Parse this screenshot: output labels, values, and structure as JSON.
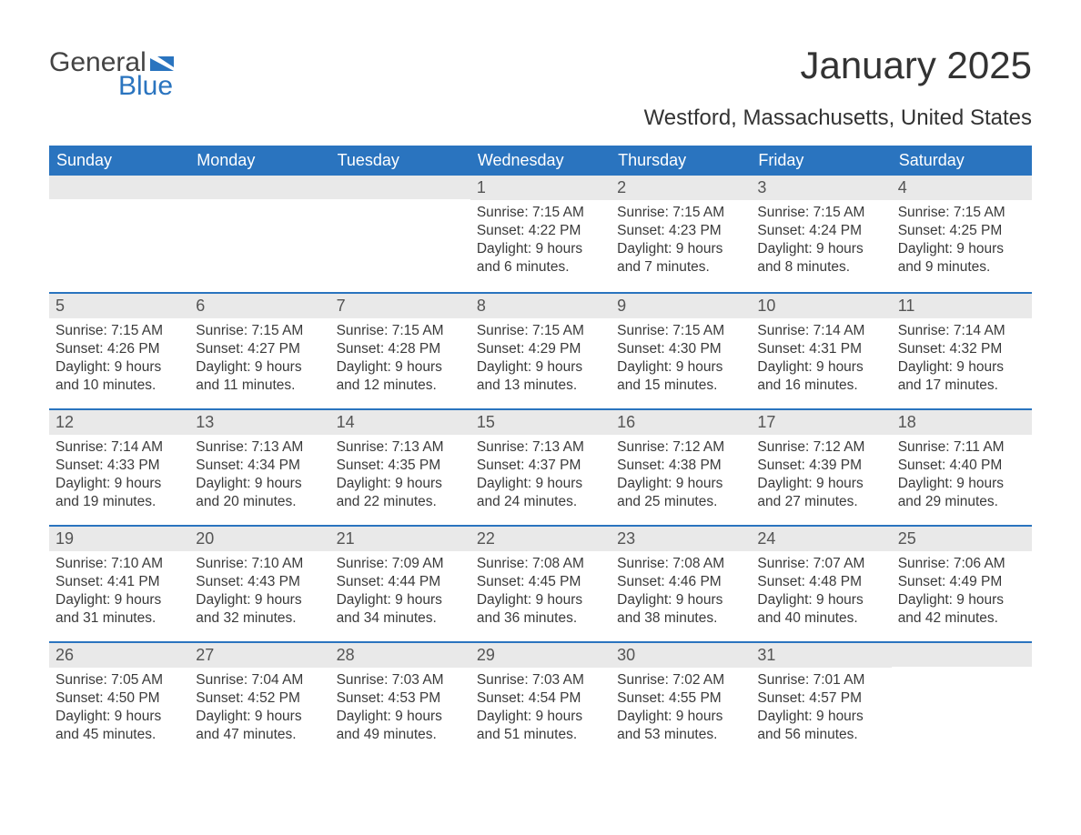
{
  "logo": {
    "top": "General",
    "bottom": "Blue"
  },
  "title": "January 2025",
  "subtitle": "Westford, Massachusetts, United States",
  "brand_color": "#2a74bf",
  "daynum_bg": "#e9e9e9",
  "weekdays": [
    "Sunday",
    "Monday",
    "Tuesday",
    "Wednesday",
    "Thursday",
    "Friday",
    "Saturday"
  ],
  "weeks": [
    [
      null,
      null,
      null,
      {
        "n": "1",
        "sr": "Sunrise: 7:15 AM",
        "ss": "Sunset: 4:22 PM",
        "d1": "Daylight: 9 hours",
        "d2": "and 6 minutes."
      },
      {
        "n": "2",
        "sr": "Sunrise: 7:15 AM",
        "ss": "Sunset: 4:23 PM",
        "d1": "Daylight: 9 hours",
        "d2": "and 7 minutes."
      },
      {
        "n": "3",
        "sr": "Sunrise: 7:15 AM",
        "ss": "Sunset: 4:24 PM",
        "d1": "Daylight: 9 hours",
        "d2": "and 8 minutes."
      },
      {
        "n": "4",
        "sr": "Sunrise: 7:15 AM",
        "ss": "Sunset: 4:25 PM",
        "d1": "Daylight: 9 hours",
        "d2": "and 9 minutes."
      }
    ],
    [
      {
        "n": "5",
        "sr": "Sunrise: 7:15 AM",
        "ss": "Sunset: 4:26 PM",
        "d1": "Daylight: 9 hours",
        "d2": "and 10 minutes."
      },
      {
        "n": "6",
        "sr": "Sunrise: 7:15 AM",
        "ss": "Sunset: 4:27 PM",
        "d1": "Daylight: 9 hours",
        "d2": "and 11 minutes."
      },
      {
        "n": "7",
        "sr": "Sunrise: 7:15 AM",
        "ss": "Sunset: 4:28 PM",
        "d1": "Daylight: 9 hours",
        "d2": "and 12 minutes."
      },
      {
        "n": "8",
        "sr": "Sunrise: 7:15 AM",
        "ss": "Sunset: 4:29 PM",
        "d1": "Daylight: 9 hours",
        "d2": "and 13 minutes."
      },
      {
        "n": "9",
        "sr": "Sunrise: 7:15 AM",
        "ss": "Sunset: 4:30 PM",
        "d1": "Daylight: 9 hours",
        "d2": "and 15 minutes."
      },
      {
        "n": "10",
        "sr": "Sunrise: 7:14 AM",
        "ss": "Sunset: 4:31 PM",
        "d1": "Daylight: 9 hours",
        "d2": "and 16 minutes."
      },
      {
        "n": "11",
        "sr": "Sunrise: 7:14 AM",
        "ss": "Sunset: 4:32 PM",
        "d1": "Daylight: 9 hours",
        "d2": "and 17 minutes."
      }
    ],
    [
      {
        "n": "12",
        "sr": "Sunrise: 7:14 AM",
        "ss": "Sunset: 4:33 PM",
        "d1": "Daylight: 9 hours",
        "d2": "and 19 minutes."
      },
      {
        "n": "13",
        "sr": "Sunrise: 7:13 AM",
        "ss": "Sunset: 4:34 PM",
        "d1": "Daylight: 9 hours",
        "d2": "and 20 minutes."
      },
      {
        "n": "14",
        "sr": "Sunrise: 7:13 AM",
        "ss": "Sunset: 4:35 PM",
        "d1": "Daylight: 9 hours",
        "d2": "and 22 minutes."
      },
      {
        "n": "15",
        "sr": "Sunrise: 7:13 AM",
        "ss": "Sunset: 4:37 PM",
        "d1": "Daylight: 9 hours",
        "d2": "and 24 minutes."
      },
      {
        "n": "16",
        "sr": "Sunrise: 7:12 AM",
        "ss": "Sunset: 4:38 PM",
        "d1": "Daylight: 9 hours",
        "d2": "and 25 minutes."
      },
      {
        "n": "17",
        "sr": "Sunrise: 7:12 AM",
        "ss": "Sunset: 4:39 PM",
        "d1": "Daylight: 9 hours",
        "d2": "and 27 minutes."
      },
      {
        "n": "18",
        "sr": "Sunrise: 7:11 AM",
        "ss": "Sunset: 4:40 PM",
        "d1": "Daylight: 9 hours",
        "d2": "and 29 minutes."
      }
    ],
    [
      {
        "n": "19",
        "sr": "Sunrise: 7:10 AM",
        "ss": "Sunset: 4:41 PM",
        "d1": "Daylight: 9 hours",
        "d2": "and 31 minutes."
      },
      {
        "n": "20",
        "sr": "Sunrise: 7:10 AM",
        "ss": "Sunset: 4:43 PM",
        "d1": "Daylight: 9 hours",
        "d2": "and 32 minutes."
      },
      {
        "n": "21",
        "sr": "Sunrise: 7:09 AM",
        "ss": "Sunset: 4:44 PM",
        "d1": "Daylight: 9 hours",
        "d2": "and 34 minutes."
      },
      {
        "n": "22",
        "sr": "Sunrise: 7:08 AM",
        "ss": "Sunset: 4:45 PM",
        "d1": "Daylight: 9 hours",
        "d2": "and 36 minutes."
      },
      {
        "n": "23",
        "sr": "Sunrise: 7:08 AM",
        "ss": "Sunset: 4:46 PM",
        "d1": "Daylight: 9 hours",
        "d2": "and 38 minutes."
      },
      {
        "n": "24",
        "sr": "Sunrise: 7:07 AM",
        "ss": "Sunset: 4:48 PM",
        "d1": "Daylight: 9 hours",
        "d2": "and 40 minutes."
      },
      {
        "n": "25",
        "sr": "Sunrise: 7:06 AM",
        "ss": "Sunset: 4:49 PM",
        "d1": "Daylight: 9 hours",
        "d2": "and 42 minutes."
      }
    ],
    [
      {
        "n": "26",
        "sr": "Sunrise: 7:05 AM",
        "ss": "Sunset: 4:50 PM",
        "d1": "Daylight: 9 hours",
        "d2": "and 45 minutes."
      },
      {
        "n": "27",
        "sr": "Sunrise: 7:04 AM",
        "ss": "Sunset: 4:52 PM",
        "d1": "Daylight: 9 hours",
        "d2": "and 47 minutes."
      },
      {
        "n": "28",
        "sr": "Sunrise: 7:03 AM",
        "ss": "Sunset: 4:53 PM",
        "d1": "Daylight: 9 hours",
        "d2": "and 49 minutes."
      },
      {
        "n": "29",
        "sr": "Sunrise: 7:03 AM",
        "ss": "Sunset: 4:54 PM",
        "d1": "Daylight: 9 hours",
        "d2": "and 51 minutes."
      },
      {
        "n": "30",
        "sr": "Sunrise: 7:02 AM",
        "ss": "Sunset: 4:55 PM",
        "d1": "Daylight: 9 hours",
        "d2": "and 53 minutes."
      },
      {
        "n": "31",
        "sr": "Sunrise: 7:01 AM",
        "ss": "Sunset: 4:57 PM",
        "d1": "Daylight: 9 hours",
        "d2": "and 56 minutes."
      },
      null
    ]
  ]
}
